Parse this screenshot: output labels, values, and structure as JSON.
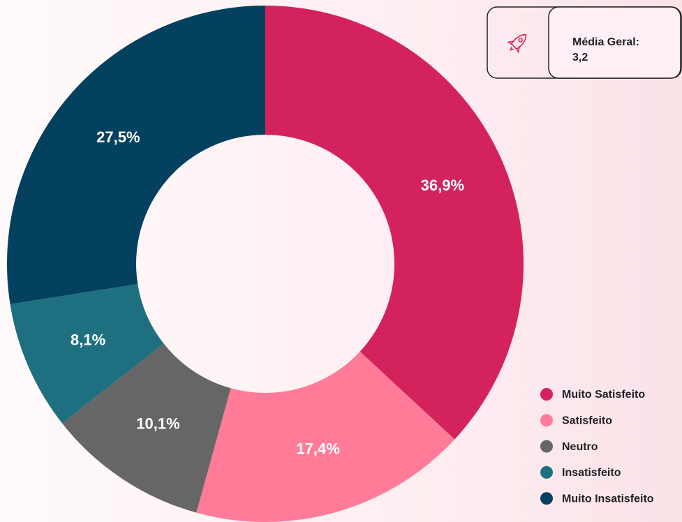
{
  "chart_data": {
    "type": "donut",
    "categories": [
      "Muito Satisfeito",
      "Satisfeito",
      "Neutro",
      "Insatisfeito",
      "Muito Insatisfeito"
    ],
    "values": [
      36.9,
      17.4,
      10.1,
      8.1,
      27.5
    ],
    "value_labels": [
      "36,9%",
      "17,4%",
      "10,1%",
      "8,1%",
      "27,5%"
    ],
    "colors": [
      "#d4235c",
      "#ff7b98",
      "#666666",
      "#1e7080",
      "#04415f"
    ],
    "legend": "bottom-right"
  },
  "card": {
    "label": "Média Geral:",
    "value": "3,2"
  }
}
